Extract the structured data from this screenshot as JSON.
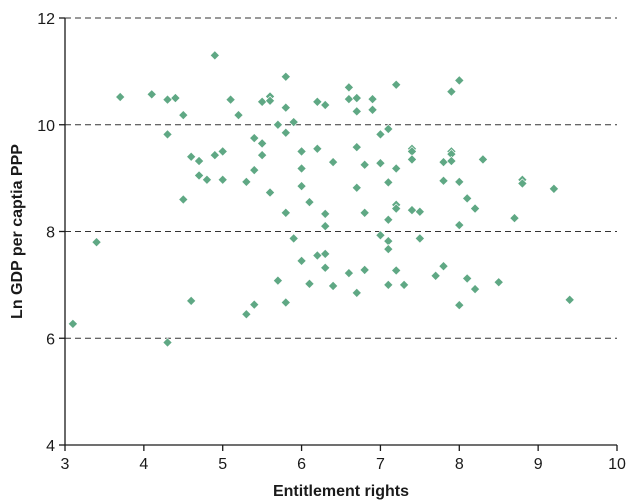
{
  "chart_data": {
    "type": "scatter",
    "title": "",
    "xlabel": "Entitlement rights",
    "ylabel": "Ln GDP per captia PPP",
    "xlim": [
      3,
      10
    ],
    "ylim": [
      4,
      12
    ],
    "x_ticks": [
      3,
      4,
      5,
      6,
      7,
      8,
      9,
      10
    ],
    "y_ticks": [
      4,
      6,
      8,
      10,
      12
    ],
    "grid": "horizontal dashed",
    "marker": "diamond",
    "colors": {
      "marker": "#5fa884",
      "axis": "#1a1a1a",
      "grid": "#333333"
    },
    "series": [
      {
        "points": [
          [
            3.1,
            6.27
          ],
          [
            3.4,
            7.8
          ],
          [
            3.7,
            10.52
          ],
          [
            4.1,
            10.57
          ],
          [
            4.3,
            10.47
          ],
          [
            4.3,
            9.82
          ],
          [
            4.3,
            5.92
          ],
          [
            4.4,
            10.5
          ],
          [
            4.5,
            10.18
          ],
          [
            4.5,
            8.6
          ],
          [
            4.6,
            9.4
          ],
          [
            4.6,
            6.7
          ],
          [
            4.7,
            9.32
          ],
          [
            4.7,
            9.05
          ],
          [
            4.8,
            8.97
          ],
          [
            4.9,
            11.3
          ],
          [
            4.9,
            9.43
          ],
          [
            5.0,
            9.5
          ],
          [
            5.0,
            8.97
          ],
          [
            5.1,
            10.47
          ],
          [
            5.2,
            10.18
          ],
          [
            5.3,
            8.93
          ],
          [
            5.3,
            6.45
          ],
          [
            5.4,
            9.75
          ],
          [
            5.4,
            9.15
          ],
          [
            5.4,
            6.63
          ],
          [
            5.5,
            10.43
          ],
          [
            5.5,
            9.65
          ],
          [
            5.5,
            9.43
          ],
          [
            5.6,
            10.53
          ],
          [
            5.6,
            10.45
          ],
          [
            5.6,
            8.73
          ],
          [
            5.7,
            10.0
          ],
          [
            5.7,
            7.08
          ],
          [
            5.8,
            10.9
          ],
          [
            5.8,
            10.32
          ],
          [
            5.8,
            9.85
          ],
          [
            5.8,
            8.35
          ],
          [
            5.8,
            6.67
          ],
          [
            5.9,
            10.05
          ],
          [
            5.9,
            7.87
          ],
          [
            6.0,
            9.5
          ],
          [
            6.0,
            9.18
          ],
          [
            6.0,
            8.85
          ],
          [
            6.0,
            7.45
          ],
          [
            6.1,
            8.55
          ],
          [
            6.1,
            7.02
          ],
          [
            6.2,
            10.43
          ],
          [
            6.2,
            9.55
          ],
          [
            6.2,
            7.55
          ],
          [
            6.3,
            10.37
          ],
          [
            6.3,
            8.33
          ],
          [
            6.3,
            8.1
          ],
          [
            6.3,
            7.58
          ],
          [
            6.3,
            7.32
          ],
          [
            6.4,
            9.3
          ],
          [
            6.4,
            6.98
          ],
          [
            6.6,
            10.7
          ],
          [
            6.6,
            10.48
          ],
          [
            6.6,
            7.22
          ],
          [
            6.7,
            10.5
          ],
          [
            6.7,
            10.25
          ],
          [
            6.7,
            9.58
          ],
          [
            6.7,
            8.82
          ],
          [
            6.7,
            6.85
          ],
          [
            6.8,
            9.25
          ],
          [
            6.8,
            8.35
          ],
          [
            6.8,
            7.28
          ],
          [
            6.9,
            10.48
          ],
          [
            6.9,
            10.28
          ],
          [
            7.0,
            9.82
          ],
          [
            7.0,
            9.28
          ],
          [
            7.0,
            7.93
          ],
          [
            7.1,
            9.92
          ],
          [
            7.1,
            8.92
          ],
          [
            7.1,
            8.22
          ],
          [
            7.1,
            7.82
          ],
          [
            7.1,
            7.67
          ],
          [
            7.1,
            7.0
          ],
          [
            7.2,
            10.75
          ],
          [
            7.2,
            9.18
          ],
          [
            7.2,
            8.5
          ],
          [
            7.2,
            8.43
          ],
          [
            7.2,
            7.27
          ],
          [
            7.3,
            7.0
          ],
          [
            7.4,
            9.55
          ],
          [
            7.4,
            9.5
          ],
          [
            7.4,
            9.35
          ],
          [
            7.4,
            8.4
          ],
          [
            7.5,
            8.37
          ],
          [
            7.5,
            7.87
          ],
          [
            7.7,
            7.17
          ],
          [
            7.8,
            9.3
          ],
          [
            7.8,
            8.95
          ],
          [
            7.8,
            7.35
          ],
          [
            7.9,
            10.62
          ],
          [
            7.9,
            9.5
          ],
          [
            7.9,
            9.45
          ],
          [
            7.9,
            9.32
          ],
          [
            8.0,
            10.83
          ],
          [
            8.0,
            8.93
          ],
          [
            8.0,
            8.12
          ],
          [
            8.0,
            6.62
          ],
          [
            8.1,
            8.62
          ],
          [
            8.1,
            7.12
          ],
          [
            8.2,
            8.43
          ],
          [
            8.2,
            6.92
          ],
          [
            8.3,
            9.35
          ],
          [
            8.5,
            7.05
          ],
          [
            8.7,
            8.25
          ],
          [
            8.8,
            8.97
          ],
          [
            8.8,
            8.9
          ],
          [
            9.2,
            8.8
          ],
          [
            9.4,
            6.72
          ]
        ]
      }
    ]
  }
}
